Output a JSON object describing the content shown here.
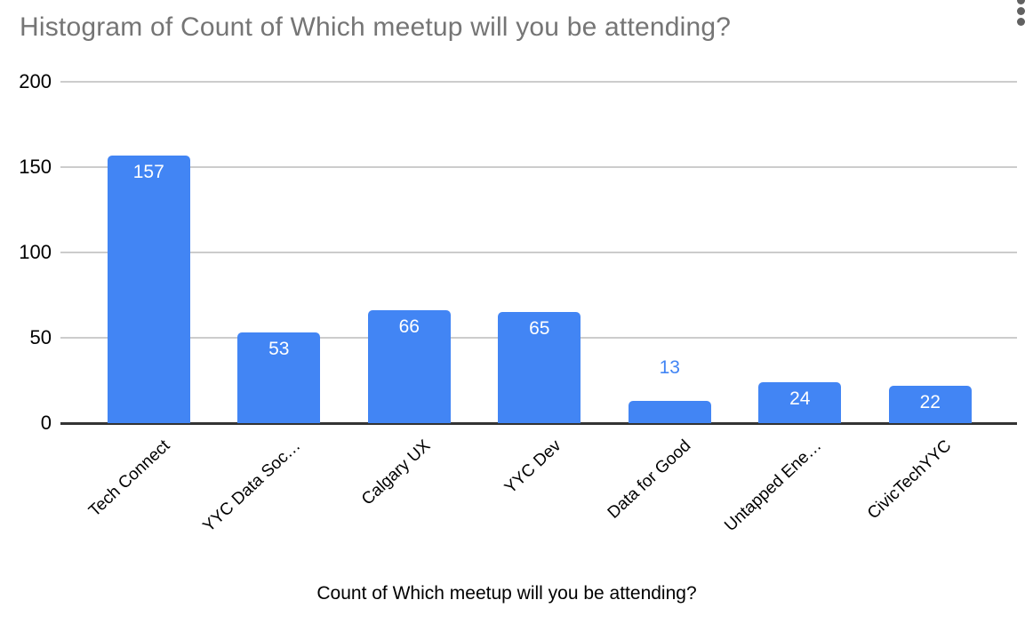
{
  "chart_data": {
    "type": "bar",
    "title": "Histogram of Count of Which meetup will you be attending?",
    "xlabel": "Count of Which meetup will you be attending?",
    "ylabel": "",
    "categories": [
      "Tech Connect",
      "YYC Data Soc…",
      "Calgary UX",
      "YYC Dev",
      "Data for Good",
      "Untapped Ene…",
      "CivicTechYYC"
    ],
    "values": [
      157,
      53,
      66,
      65,
      13,
      24,
      22
    ],
    "ylim": [
      0,
      200
    ],
    "yticks": [
      0,
      50,
      100,
      150,
      200
    ],
    "grid": true,
    "legend": "none",
    "annotations": [
      157,
      53,
      66,
      65,
      13,
      24,
      22
    ]
  },
  "style": {
    "background": "#ffffff",
    "bar_color": "#4285f4",
    "annotation_inside_color": "#ffffff",
    "annotation_outside_color": "#4285f4",
    "title_color": "#757575",
    "axis_text_color": "#000000",
    "gridline_color": "#cccccc",
    "baseline_color": "#333333",
    "menu_icon_color": "#616161"
  },
  "menu": {
    "options_icon": "kebab-menu-icon"
  }
}
